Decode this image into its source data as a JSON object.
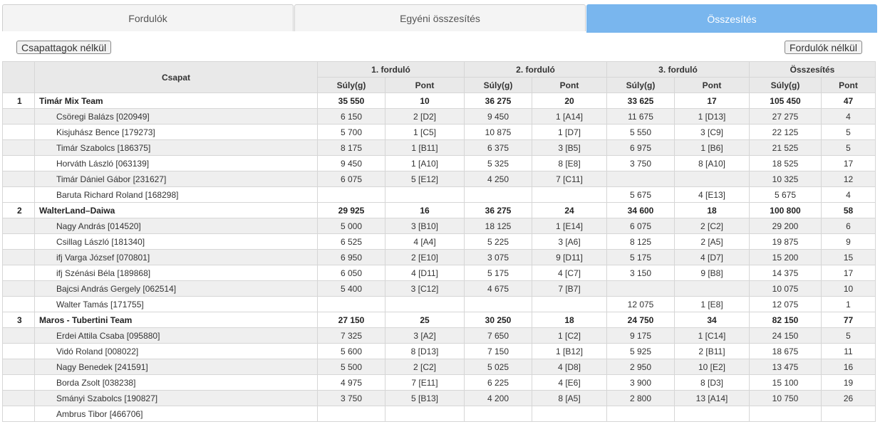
{
  "tabs": [
    "Fordulók",
    "Egyéni összesítés",
    "Összesítés"
  ],
  "buttons": {
    "left": "Csapattagok nélkül",
    "right": "Fordulók nélkül"
  },
  "header": {
    "team_col": "Csapat",
    "groups": [
      "1. forduló",
      "2. forduló",
      "3. forduló",
      "Összesítés"
    ],
    "weight": "Súly(g)",
    "points": "Pont"
  },
  "colors": {
    "active_tab": "#79b6ee",
    "header_bg": "#e9e9e9",
    "stripe": "#efefef"
  },
  "teams": [
    {
      "rank": "1",
      "name": "Timár Mix Team",
      "totals": [
        "35 550",
        "10",
        "36 275",
        "20",
        "33 625",
        "17",
        "105 450",
        "47"
      ],
      "members": [
        {
          "name": "Csöregi Balázs [020949]",
          "cells": [
            "6 150",
            "2 [D2]",
            "9 450",
            "1 [A14]",
            "11 675",
            "1 [D13]",
            "27 275",
            "4"
          ]
        },
        {
          "name": "Kisjuhász Bence [179273]",
          "cells": [
            "5 700",
            "1 [C5]",
            "10 875",
            "1 [D7]",
            "5 550",
            "3 [C9]",
            "22 125",
            "5"
          ]
        },
        {
          "name": "Timár Szabolcs [186375]",
          "cells": [
            "8 175",
            "1 [B11]",
            "6 375",
            "3 [B5]",
            "6 975",
            "1 [B6]",
            "21 525",
            "5"
          ]
        },
        {
          "name": "Horváth László [063139]",
          "cells": [
            "9 450",
            "1 [A10]",
            "5 325",
            "8 [E8]",
            "3 750",
            "8 [A10]",
            "18 525",
            "17"
          ]
        },
        {
          "name": "Timár Dániel Gábor [231627]",
          "cells": [
            "6 075",
            "5 [E12]",
            "4 250",
            "7 [C11]",
            "",
            "",
            "10 325",
            "12"
          ]
        },
        {
          "name": "Baruta Richard Roland [168298]",
          "cells": [
            "",
            "",
            "",
            "",
            "5 675",
            "4 [E13]",
            "5 675",
            "4"
          ]
        }
      ]
    },
    {
      "rank": "2",
      "name": "WalterLand–Daiwa",
      "totals": [
        "29 925",
        "16",
        "36 275",
        "24",
        "34 600",
        "18",
        "100 800",
        "58"
      ],
      "members": [
        {
          "name": "Nagy András [014520]",
          "cells": [
            "5 000",
            "3 [B10]",
            "18 125",
            "1 [E14]",
            "6 075",
            "2 [C2]",
            "29 200",
            "6"
          ]
        },
        {
          "name": "Csillag László [181340]",
          "cells": [
            "6 525",
            "4 [A4]",
            "5 225",
            "3 [A6]",
            "8 125",
            "2 [A5]",
            "19 875",
            "9"
          ]
        },
        {
          "name": "ifj Varga József [070801]",
          "cells": [
            "6 950",
            "2 [E10]",
            "3 075",
            "9 [D11]",
            "5 175",
            "4 [D7]",
            "15 200",
            "15"
          ]
        },
        {
          "name": "ifj Szénási Béla [189868]",
          "cells": [
            "6 050",
            "4 [D11]",
            "5 175",
            "4 [C7]",
            "3 150",
            "9 [B8]",
            "14 375",
            "17"
          ]
        },
        {
          "name": "Bajcsi András Gergely [062514]",
          "cells": [
            "5 400",
            "3 [C12]",
            "4 675",
            "7 [B7]",
            "",
            "",
            "10 075",
            "10"
          ]
        },
        {
          "name": "Walter Tamás [171755]",
          "cells": [
            "",
            "",
            "",
            "",
            "12 075",
            "1 [E8]",
            "12 075",
            "1"
          ]
        }
      ]
    },
    {
      "rank": "3",
      "name": "Maros - Tubertini Team",
      "totals": [
        "27 150",
        "25",
        "30 250",
        "18",
        "24 750",
        "34",
        "82 150",
        "77"
      ],
      "members": [
        {
          "name": "Erdei Attila Csaba [095880]",
          "cells": [
            "7 325",
            "3 [A2]",
            "7 650",
            "1 [C2]",
            "9 175",
            "1 [C14]",
            "24 150",
            "5"
          ]
        },
        {
          "name": "Vidó Roland [008022]",
          "cells": [
            "5 600",
            "8 [D13]",
            "7 150",
            "1 [B12]",
            "5 925",
            "2 [B11]",
            "18 675",
            "11"
          ]
        },
        {
          "name": "Nagy Benedek [241591]",
          "cells": [
            "5 500",
            "2 [C2]",
            "5 025",
            "4 [D8]",
            "2 950",
            "10 [E2]",
            "13 475",
            "16"
          ]
        },
        {
          "name": "Borda Zsolt [038238]",
          "cells": [
            "4 975",
            "7 [E11]",
            "6 225",
            "4 [E6]",
            "3 900",
            "8 [D3]",
            "15 100",
            "19"
          ]
        },
        {
          "name": "Smányi Szabolcs [190827]",
          "cells": [
            "3 750",
            "5 [B13]",
            "4 200",
            "8 [A5]",
            "2 800",
            "13 [A14]",
            "10 750",
            "26"
          ]
        },
        {
          "name": "Ambrus Tibor [466706]",
          "cells": [
            "",
            "",
            "",
            "",
            "",
            "",
            "",
            ""
          ]
        }
      ]
    }
  ]
}
